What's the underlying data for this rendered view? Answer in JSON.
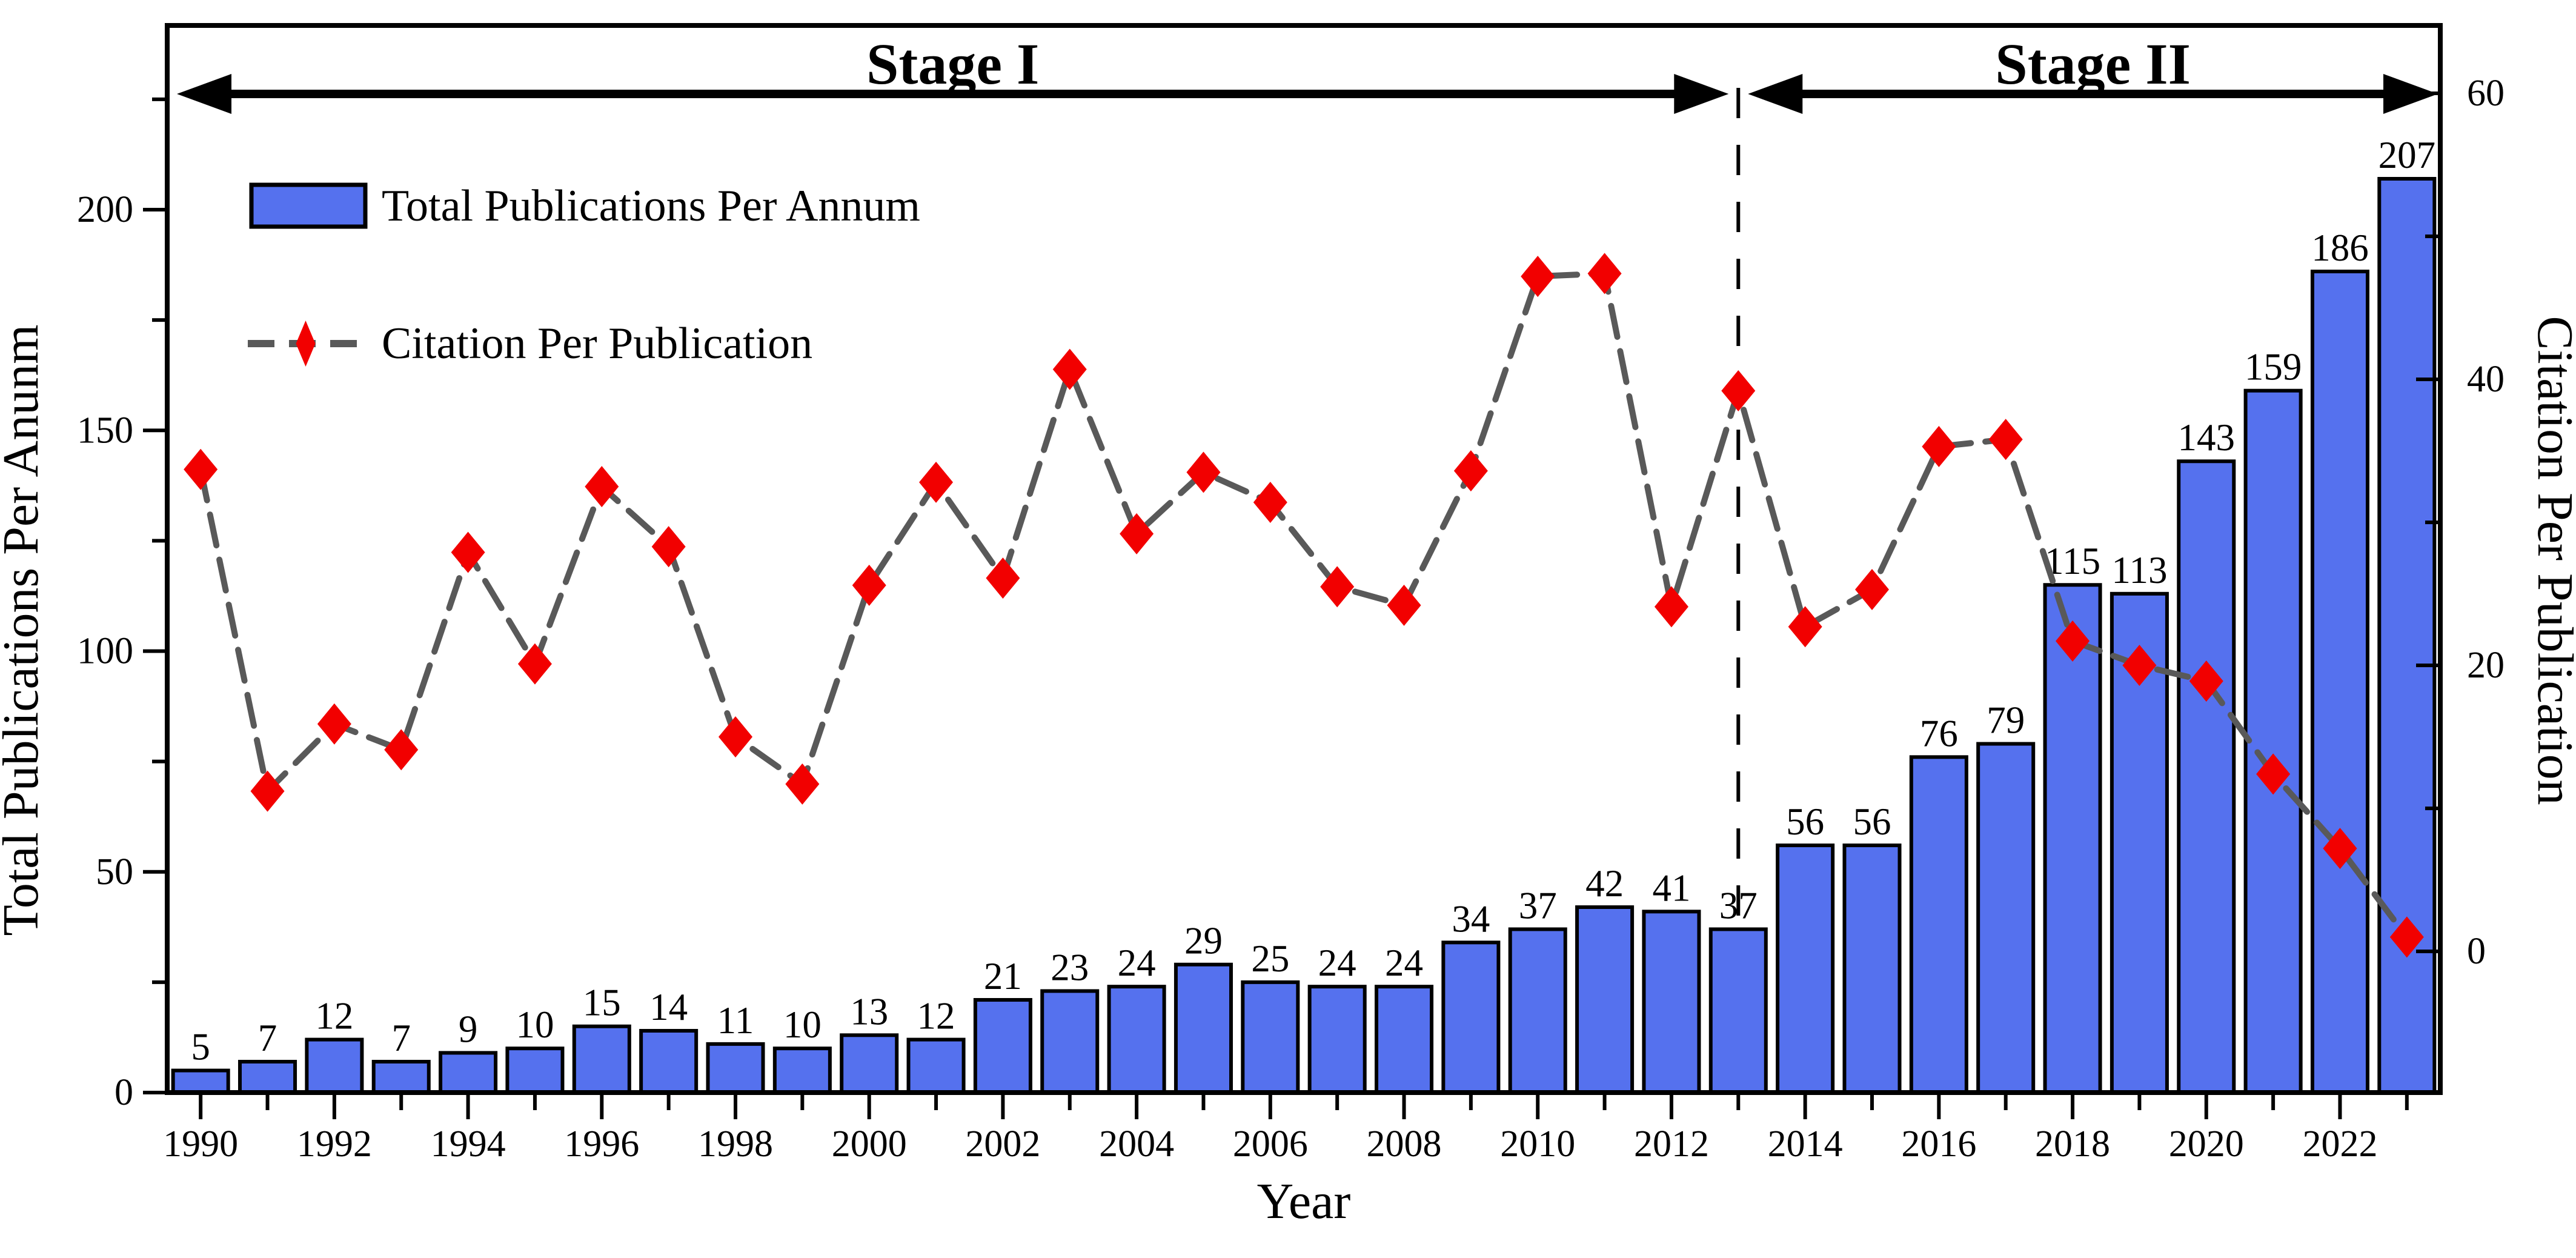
{
  "chart_data": {
    "type": "bar+line-dual-axis",
    "years": [
      1990,
      1991,
      1992,
      1993,
      1994,
      1995,
      1996,
      1997,
      1998,
      1999,
      2000,
      2001,
      2002,
      2003,
      2004,
      2005,
      2006,
      2007,
      2008,
      2009,
      2010,
      2011,
      2012,
      2013,
      2014,
      2015,
      2016,
      2017,
      2018,
      2019,
      2020,
      2021,
      2022,
      2023
    ],
    "series": [
      {
        "name": "Total Publications Per Annum",
        "type": "bar",
        "axis": "left",
        "values": [
          5,
          7,
          12,
          7,
          9,
          10,
          15,
          14,
          11,
          10,
          13,
          12,
          21,
          23,
          24,
          29,
          25,
          24,
          24,
          34,
          37,
          42,
          41,
          37,
          56,
          56,
          76,
          79,
          115,
          113,
          143,
          159,
          186,
          207
        ]
      },
      {
        "name": "Citation Per Publication",
        "type": "line",
        "axis": "right",
        "values": [
          33.7,
          11.2,
          15.9,
          14.1,
          27.9,
          20.1,
          32.5,
          28.3,
          15.0,
          11.7,
          25.6,
          32.8,
          26.1,
          40.7,
          29.2,
          33.5,
          31.4,
          25.5,
          24.2,
          33.6,
          47.2,
          47.4,
          24.1,
          39.2,
          22.7,
          25.3,
          35.3,
          35.8,
          21.7,
          20.0,
          18.9,
          12.4,
          7.2,
          1.0
        ]
      }
    ],
    "xlabel": "Year",
    "ylabel_left": "Total Publications Per Anunm",
    "ylabel_right": "Citation Per Publication",
    "left_axis_ticks": [
      0,
      50,
      100,
      150,
      200
    ],
    "left_axis_minor_ticks": [
      25,
      75,
      125,
      175,
      225
    ],
    "right_axis_ticks": [
      0,
      20,
      40,
      60
    ],
    "right_axis_minor_ticks": [
      10,
      30,
      50
    ],
    "x_axis_tick_labels": [
      "1990",
      "1992",
      "1994",
      "1996",
      "1998",
      "2000",
      "2002",
      "2004",
      "2006",
      "2008",
      "2010",
      "2012",
      "2014",
      "2016",
      "2018",
      "2020",
      "2022"
    ],
    "grid": false,
    "legend_position": "top-left-inside"
  },
  "annotations": {
    "stage1_label": "Stage I",
    "stage2_label": "Stage II",
    "divider_year": 2013
  },
  "legend": {
    "bar_label": "Total Publications Per Annum",
    "line_label": "Citation Per Publication"
  },
  "colors": {
    "bar_fill": "#5571ee",
    "bar_stroke": "#000000",
    "line": "#595959",
    "marker": "#f20000",
    "axis": "#000000",
    "background": "#ffffff"
  }
}
